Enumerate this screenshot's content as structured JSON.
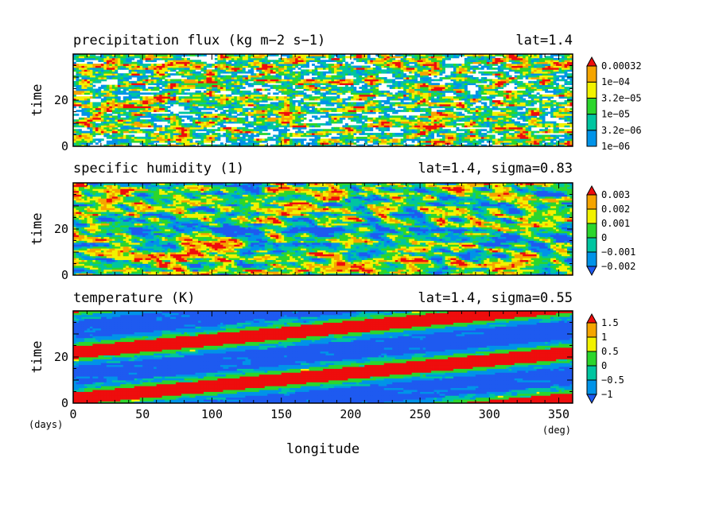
{
  "chart_data": [
    {
      "type": "heatmap",
      "title": "precipitation flux (kg m−2 s−1)",
      "subtitle": "lat=1.4",
      "ylabel": "time",
      "xlim": [
        0,
        360
      ],
      "ylim": [
        0,
        40
      ],
      "yticks": [
        0,
        20
      ],
      "colorbar": {
        "labels": [
          "0.00032",
          "1e−04",
          "3.2e−05",
          "1e−05",
          "3.2e−06",
          "1e−06"
        ],
        "colors": [
          "#0093E8",
          "#00C5A0",
          "#2CD62C",
          "#F2F200",
          "#F5A500",
          "#EE0D0D"
        ],
        "extend": "max"
      }
    },
    {
      "type": "heatmap",
      "title": "specific humidity (1)",
      "subtitle": "lat=1.4, sigma=0.83",
      "ylabel": "time",
      "xlim": [
        0,
        360
      ],
      "ylim": [
        0,
        40
      ],
      "yticks": [
        0,
        20
      ],
      "colorbar": {
        "labels": [
          "0.003",
          "0.002",
          "0.001",
          "0",
          "−0.001",
          "−0.002"
        ],
        "colors": [
          "#1E5AF0",
          "#0093E8",
          "#00C5A0",
          "#2CD62C",
          "#F2F200",
          "#F5A500",
          "#EE0D0D"
        ],
        "extend": "both"
      }
    },
    {
      "type": "heatmap",
      "title": "temperature (K)",
      "subtitle": "lat=1.4, sigma=0.55",
      "ylabel": "time",
      "xlabel": "longitude",
      "xlim": [
        0,
        360
      ],
      "ylim": [
        0,
        40
      ],
      "yticks": [
        0,
        20
      ],
      "xticks": [
        0,
        50,
        100,
        150,
        200,
        250,
        300,
        350
      ],
      "x_unit": "(deg)",
      "y_unit": "(days)",
      "colorbar": {
        "labels": [
          "1.5",
          "1",
          "0.5",
          "0",
          "−0.5",
          "−1"
        ],
        "colors": [
          "#1E5AF0",
          "#0093E8",
          "#00C5A0",
          "#2CD62C",
          "#F2F200",
          "#F5A500",
          "#EE0D0D"
        ],
        "extend": "both"
      }
    }
  ]
}
